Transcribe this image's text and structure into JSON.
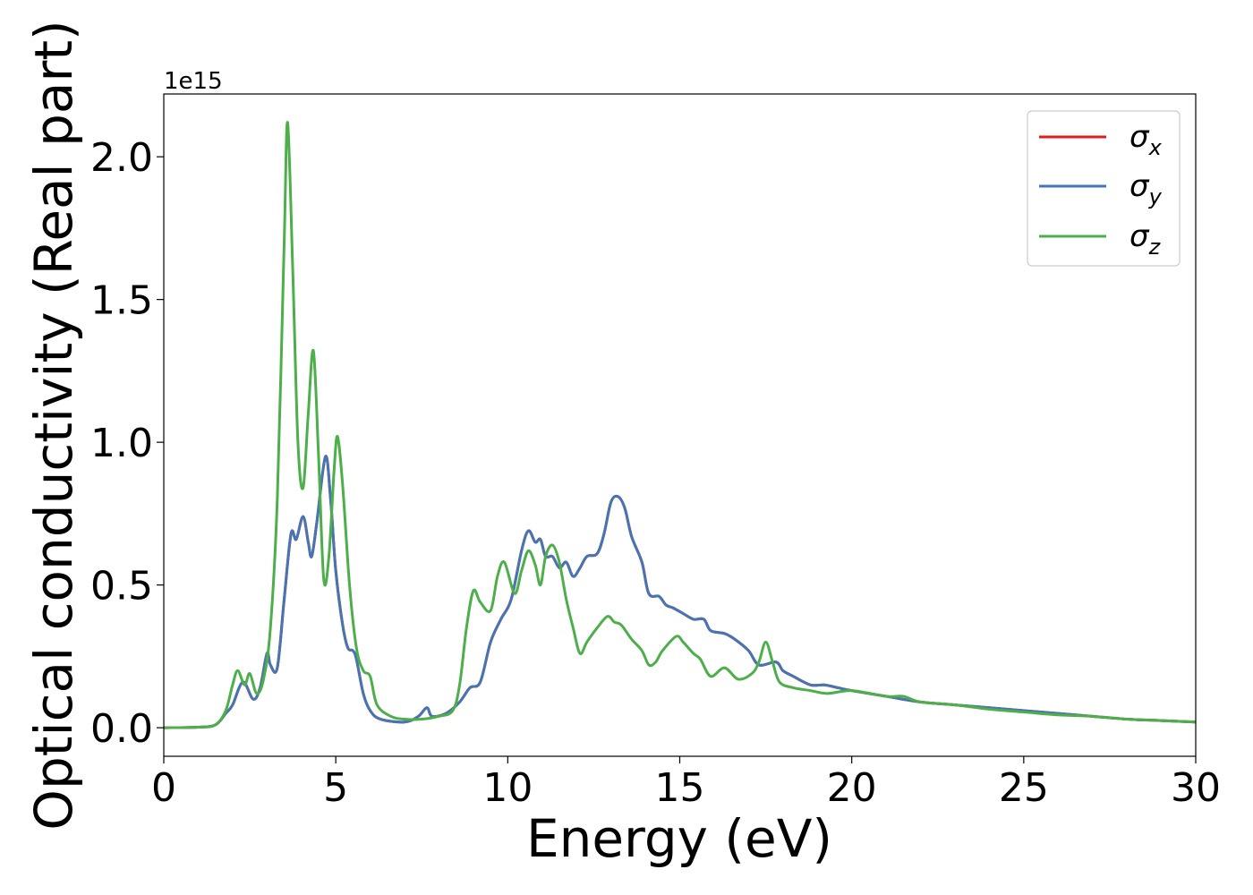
{
  "chart_data": {
    "type": "line",
    "xlabel": "Energy (eV)",
    "ylabel": "Optical conductivity (Real part)",
    "offset_text": "1e15",
    "xlim": [
      0,
      30
    ],
    "ylim": [
      -0.1,
      2.22
    ],
    "xticks": [
      0,
      5,
      10,
      15,
      20,
      25,
      30
    ],
    "xtick_labels": [
      "0",
      "5",
      "10",
      "15",
      "20",
      "25",
      "30"
    ],
    "yticks": [
      0.0,
      0.5,
      1.0,
      1.5,
      2.0
    ],
    "ytick_labels": [
      "0.0",
      "0.5",
      "1.0",
      "1.5",
      "2.0"
    ],
    "grid": false,
    "legend_position": "top-right",
    "series": [
      {
        "name": "σx",
        "symbol": "σ",
        "subscript": "x",
        "color": "#e41a1c",
        "points": [
          [
            0,
            0
          ],
          [
            1,
            0.002
          ],
          [
            1.5,
            0.01
          ],
          [
            1.8,
            0.05
          ],
          [
            2.0,
            0.08
          ],
          [
            2.3,
            0.16
          ],
          [
            2.6,
            0.1
          ],
          [
            2.8,
            0.14
          ],
          [
            3.0,
            0.26
          ],
          [
            3.1,
            0.22
          ],
          [
            3.3,
            0.21
          ],
          [
            3.5,
            0.45
          ],
          [
            3.7,
            0.68
          ],
          [
            3.85,
            0.66
          ],
          [
            4.05,
            0.74
          ],
          [
            4.2,
            0.65
          ],
          [
            4.3,
            0.6
          ],
          [
            4.45,
            0.72
          ],
          [
            4.7,
            0.95
          ],
          [
            4.85,
            0.8
          ],
          [
            5.0,
            0.55
          ],
          [
            5.2,
            0.36
          ],
          [
            5.35,
            0.28
          ],
          [
            5.5,
            0.27
          ],
          [
            5.6,
            0.24
          ],
          [
            5.8,
            0.12
          ],
          [
            6.0,
            0.06
          ],
          [
            6.3,
            0.03
          ],
          [
            7.0,
            0.02
          ],
          [
            7.4,
            0.04
          ],
          [
            7.65,
            0.07
          ],
          [
            7.8,
            0.04
          ],
          [
            8.2,
            0.05
          ],
          [
            8.6,
            0.09
          ],
          [
            8.9,
            0.14
          ],
          [
            9.2,
            0.16
          ],
          [
            9.5,
            0.3
          ],
          [
            9.8,
            0.38
          ],
          [
            10.1,
            0.45
          ],
          [
            10.4,
            0.62
          ],
          [
            10.6,
            0.69
          ],
          [
            10.8,
            0.65
          ],
          [
            10.95,
            0.66
          ],
          [
            11.1,
            0.6
          ],
          [
            11.3,
            0.6
          ],
          [
            11.5,
            0.56
          ],
          [
            11.7,
            0.58
          ],
          [
            11.9,
            0.53
          ],
          [
            12.1,
            0.56
          ],
          [
            12.3,
            0.6
          ],
          [
            12.6,
            0.61
          ],
          [
            12.8,
            0.68
          ],
          [
            13.0,
            0.79
          ],
          [
            13.2,
            0.81
          ],
          [
            13.4,
            0.77
          ],
          [
            13.6,
            0.67
          ],
          [
            13.9,
            0.58
          ],
          [
            14.1,
            0.47
          ],
          [
            14.4,
            0.46
          ],
          [
            14.6,
            0.43
          ],
          [
            14.8,
            0.42
          ],
          [
            15.1,
            0.4
          ],
          [
            15.4,
            0.38
          ],
          [
            15.7,
            0.38
          ],
          [
            15.9,
            0.34
          ],
          [
            16.3,
            0.33
          ],
          [
            16.6,
            0.31
          ],
          [
            17.0,
            0.27
          ],
          [
            17.3,
            0.22
          ],
          [
            17.8,
            0.23
          ],
          [
            18.0,
            0.2
          ],
          [
            18.3,
            0.18
          ],
          [
            18.8,
            0.15
          ],
          [
            19.2,
            0.15
          ],
          [
            19.6,
            0.14
          ],
          [
            20,
            0.13
          ],
          [
            21,
            0.11
          ],
          [
            22,
            0.09
          ],
          [
            23,
            0.08
          ],
          [
            24,
            0.07
          ],
          [
            25,
            0.06
          ],
          [
            26,
            0.05
          ],
          [
            27,
            0.04
          ],
          [
            28,
            0.03
          ],
          [
            29,
            0.025
          ],
          [
            30,
            0.02
          ]
        ]
      },
      {
        "name": "σy",
        "symbol": "σ",
        "subscript": "y",
        "color": "#4575b4",
        "points": [
          [
            0,
            0
          ],
          [
            1,
            0.002
          ],
          [
            1.5,
            0.01
          ],
          [
            1.8,
            0.05
          ],
          [
            2.0,
            0.08
          ],
          [
            2.3,
            0.16
          ],
          [
            2.6,
            0.1
          ],
          [
            2.8,
            0.14
          ],
          [
            3.0,
            0.26
          ],
          [
            3.1,
            0.22
          ],
          [
            3.3,
            0.21
          ],
          [
            3.5,
            0.45
          ],
          [
            3.7,
            0.68
          ],
          [
            3.85,
            0.66
          ],
          [
            4.05,
            0.74
          ],
          [
            4.2,
            0.65
          ],
          [
            4.3,
            0.6
          ],
          [
            4.45,
            0.72
          ],
          [
            4.7,
            0.95
          ],
          [
            4.85,
            0.8
          ],
          [
            5.0,
            0.55
          ],
          [
            5.2,
            0.36
          ],
          [
            5.35,
            0.28
          ],
          [
            5.5,
            0.27
          ],
          [
            5.6,
            0.24
          ],
          [
            5.8,
            0.12
          ],
          [
            6.0,
            0.06
          ],
          [
            6.3,
            0.03
          ],
          [
            7.0,
            0.02
          ],
          [
            7.4,
            0.04
          ],
          [
            7.65,
            0.07
          ],
          [
            7.8,
            0.04
          ],
          [
            8.2,
            0.05
          ],
          [
            8.6,
            0.09
          ],
          [
            8.9,
            0.14
          ],
          [
            9.2,
            0.16
          ],
          [
            9.5,
            0.3
          ],
          [
            9.8,
            0.38
          ],
          [
            10.1,
            0.45
          ],
          [
            10.4,
            0.62
          ],
          [
            10.6,
            0.69
          ],
          [
            10.8,
            0.65
          ],
          [
            10.95,
            0.66
          ],
          [
            11.1,
            0.6
          ],
          [
            11.3,
            0.6
          ],
          [
            11.5,
            0.56
          ],
          [
            11.7,
            0.58
          ],
          [
            11.9,
            0.53
          ],
          [
            12.1,
            0.56
          ],
          [
            12.3,
            0.6
          ],
          [
            12.6,
            0.61
          ],
          [
            12.8,
            0.68
          ],
          [
            13.0,
            0.79
          ],
          [
            13.2,
            0.81
          ],
          [
            13.4,
            0.77
          ],
          [
            13.6,
            0.67
          ],
          [
            13.9,
            0.58
          ],
          [
            14.1,
            0.47
          ],
          [
            14.4,
            0.46
          ],
          [
            14.6,
            0.43
          ],
          [
            14.8,
            0.42
          ],
          [
            15.1,
            0.4
          ],
          [
            15.4,
            0.38
          ],
          [
            15.7,
            0.38
          ],
          [
            15.9,
            0.34
          ],
          [
            16.3,
            0.33
          ],
          [
            16.6,
            0.31
          ],
          [
            17.0,
            0.27
          ],
          [
            17.3,
            0.22
          ],
          [
            17.8,
            0.23
          ],
          [
            18.0,
            0.2
          ],
          [
            18.3,
            0.18
          ],
          [
            18.8,
            0.15
          ],
          [
            19.2,
            0.15
          ],
          [
            19.6,
            0.14
          ],
          [
            20,
            0.13
          ],
          [
            21,
            0.11
          ],
          [
            22,
            0.09
          ],
          [
            23,
            0.08
          ],
          [
            24,
            0.07
          ],
          [
            25,
            0.06
          ],
          [
            26,
            0.05
          ],
          [
            27,
            0.04
          ],
          [
            28,
            0.03
          ],
          [
            29,
            0.025
          ],
          [
            30,
            0.02
          ]
        ]
      },
      {
        "name": "σz",
        "symbol": "σ",
        "subscript": "z",
        "color": "#4daf4a",
        "points": [
          [
            0,
            0
          ],
          [
            1,
            0.002
          ],
          [
            1.5,
            0.01
          ],
          [
            1.8,
            0.06
          ],
          [
            2.0,
            0.15
          ],
          [
            2.15,
            0.2
          ],
          [
            2.35,
            0.15
          ],
          [
            2.5,
            0.19
          ],
          [
            2.7,
            0.12
          ],
          [
            2.9,
            0.17
          ],
          [
            3.1,
            0.35
          ],
          [
            3.3,
            0.8
          ],
          [
            3.5,
            1.7
          ],
          [
            3.6,
            2.12
          ],
          [
            3.75,
            1.6
          ],
          [
            3.9,
            1.0
          ],
          [
            4.05,
            0.84
          ],
          [
            4.2,
            1.1
          ],
          [
            4.35,
            1.32
          ],
          [
            4.5,
            0.95
          ],
          [
            4.65,
            0.52
          ],
          [
            4.8,
            0.6
          ],
          [
            4.95,
            0.9
          ],
          [
            5.05,
            1.02
          ],
          [
            5.2,
            0.85
          ],
          [
            5.4,
            0.5
          ],
          [
            5.6,
            0.28
          ],
          [
            5.8,
            0.2
          ],
          [
            6.0,
            0.18
          ],
          [
            6.2,
            0.08
          ],
          [
            6.6,
            0.04
          ],
          [
            7.0,
            0.03
          ],
          [
            7.5,
            0.03
          ],
          [
            8.0,
            0.04
          ],
          [
            8.4,
            0.06
          ],
          [
            8.6,
            0.15
          ],
          [
            8.8,
            0.35
          ],
          [
            9.0,
            0.48
          ],
          [
            9.2,
            0.44
          ],
          [
            9.5,
            0.41
          ],
          [
            9.7,
            0.53
          ],
          [
            9.9,
            0.58
          ],
          [
            10.2,
            0.47
          ],
          [
            10.4,
            0.55
          ],
          [
            10.6,
            0.62
          ],
          [
            10.8,
            0.57
          ],
          [
            10.95,
            0.5
          ],
          [
            11.1,
            0.6
          ],
          [
            11.3,
            0.64
          ],
          [
            11.5,
            0.58
          ],
          [
            11.7,
            0.45
          ],
          [
            11.9,
            0.35
          ],
          [
            12.1,
            0.26
          ],
          [
            12.3,
            0.3
          ],
          [
            12.6,
            0.35
          ],
          [
            12.9,
            0.39
          ],
          [
            13.1,
            0.37
          ],
          [
            13.3,
            0.36
          ],
          [
            13.6,
            0.31
          ],
          [
            13.9,
            0.27
          ],
          [
            14.1,
            0.22
          ],
          [
            14.3,
            0.23
          ],
          [
            14.5,
            0.27
          ],
          [
            14.9,
            0.32
          ],
          [
            15.1,
            0.3
          ],
          [
            15.4,
            0.26
          ],
          [
            15.6,
            0.24
          ],
          [
            15.9,
            0.18
          ],
          [
            16.3,
            0.21
          ],
          [
            16.7,
            0.17
          ],
          [
            17.1,
            0.19
          ],
          [
            17.3,
            0.23
          ],
          [
            17.5,
            0.3
          ],
          [
            17.7,
            0.23
          ],
          [
            17.9,
            0.16
          ],
          [
            18.3,
            0.14
          ],
          [
            18.8,
            0.13
          ],
          [
            19.3,
            0.12
          ],
          [
            20,
            0.13
          ],
          [
            21,
            0.11
          ],
          [
            21.5,
            0.11
          ],
          [
            22,
            0.09
          ],
          [
            23,
            0.08
          ],
          [
            24,
            0.065
          ],
          [
            25,
            0.055
          ],
          [
            26,
            0.045
          ],
          [
            27,
            0.04
          ],
          [
            28,
            0.03
          ],
          [
            29,
            0.025
          ],
          [
            30,
            0.02
          ]
        ]
      }
    ]
  }
}
